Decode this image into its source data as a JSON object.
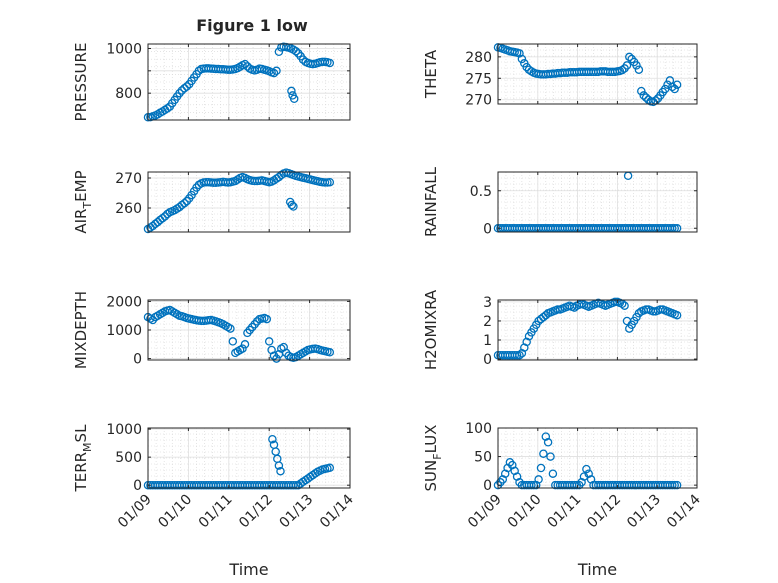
{
  "figure": {
    "title": "Figure 1 low",
    "marker_color": "#0072BD",
    "x_ticks": [
      "01/09",
      "01/10",
      "01/11",
      "01/12",
      "01/13",
      "01/14"
    ],
    "x_label": "Time"
  },
  "chart_data": [
    {
      "type": "scatter",
      "ylabel": "PRESSURE",
      "xlim": [
        0,
        5
      ],
      "ylim": [
        680,
        1020
      ],
      "yticks": [
        800,
        900,
        1000
      ],
      "ytick_labels": [
        "800",
        "",
        "1000"
      ],
      "x": [
        0.0,
        0.06,
        0.12,
        0.18,
        0.24,
        0.3,
        0.36,
        0.42,
        0.48,
        0.54,
        0.6,
        0.66,
        0.72,
        0.78,
        0.84,
        0.9,
        0.96,
        1.02,
        1.08,
        1.14,
        1.2,
        1.26,
        1.32,
        1.38,
        1.44,
        1.5,
        1.56,
        1.62,
        1.68,
        1.74,
        1.8,
        1.86,
        1.92,
        1.98,
        2.04,
        2.1,
        2.16,
        2.22,
        2.28,
        2.34,
        2.4,
        2.46,
        2.52,
        2.58,
        2.64,
        2.7,
        2.76,
        2.82,
        2.88,
        2.94,
        3.0,
        3.06,
        3.12,
        3.18,
        3.24,
        3.3,
        3.36,
        3.42,
        3.48,
        3.54,
        3.6,
        3.66,
        3.72,
        3.78,
        3.84,
        3.9,
        3.96,
        4.02,
        4.08,
        4.14,
        4.2,
        4.26,
        4.32,
        4.38,
        4.44,
        4.5,
        3.55,
        3.58,
        3.62
      ],
      "y": [
        692,
        693,
        696,
        700,
        705,
        712,
        718,
        725,
        732,
        740,
        755,
        770,
        785,
        800,
        812,
        822,
        830,
        840,
        855,
        870,
        885,
        900,
        908,
        910,
        911,
        911,
        910,
        909,
        908,
        908,
        907,
        907,
        906,
        905,
        905,
        906,
        908,
        912,
        918,
        925,
        930,
        920,
        910,
        905,
        902,
        905,
        910,
        908,
        905,
        902,
        898,
        893,
        890,
        900,
        985,
        1005,
        1008,
        1006,
        1004,
        1000,
        995,
        988,
        978,
        965,
        950,
        940,
        935,
        932,
        930,
        932,
        935,
        938,
        940,
        940,
        938,
        935,
        810,
        790,
        775
      ]
    },
    {
      "type": "scatter",
      "ylabel": "THETA",
      "xlim": [
        0,
        5
      ],
      "ylim": [
        269,
        283
      ],
      "yticks": [
        270,
        275,
        280
      ],
      "ytick_labels": [
        "270",
        "275",
        "280"
      ],
      "x": [
        0.0,
        0.06,
        0.12,
        0.18,
        0.24,
        0.3,
        0.36,
        0.42,
        0.48,
        0.54,
        0.6,
        0.66,
        0.72,
        0.78,
        0.84,
        0.9,
        0.96,
        1.02,
        1.08,
        1.14,
        1.2,
        1.26,
        1.32,
        1.38,
        1.44,
        1.5,
        1.56,
        1.62,
        1.68,
        1.74,
        1.8,
        1.86,
        1.92,
        1.98,
        2.04,
        2.1,
        2.16,
        2.22,
        2.28,
        2.34,
        2.4,
        2.46,
        2.52,
        2.58,
        2.64,
        2.7,
        2.76,
        2.82,
        2.88,
        2.94,
        3.0,
        3.06,
        3.12,
        3.18,
        3.24,
        3.3,
        3.36,
        3.42,
        3.48,
        3.54,
        3.6,
        3.66,
        3.72,
        3.78,
        3.84,
        3.9,
        3.96,
        4.02,
        4.08,
        4.14,
        4.2,
        4.26,
        4.32,
        4.38,
        4.44,
        4.5
      ],
      "y": [
        282.2,
        282.1,
        281.9,
        281.7,
        281.5,
        281.3,
        281.2,
        281.1,
        281.0,
        280.8,
        279.5,
        278.5,
        277.6,
        277.0,
        276.6,
        276.3,
        276.1,
        276.0,
        275.9,
        275.9,
        275.9,
        276.0,
        276.0,
        276.1,
        276.1,
        276.2,
        276.2,
        276.3,
        276.3,
        276.3,
        276.4,
        276.4,
        276.4,
        276.4,
        276.5,
        276.5,
        276.5,
        276.5,
        276.5,
        276.5,
        276.5,
        276.5,
        276.5,
        276.6,
        276.6,
        276.6,
        276.5,
        276.5,
        276.5,
        276.5,
        276.6,
        276.7,
        276.9,
        277.3,
        278.0,
        280.0,
        279.5,
        278.8,
        278.0,
        277.0,
        272.0,
        271.0,
        270.5,
        270.0,
        269.6,
        269.5,
        269.8,
        270.3,
        271.0,
        271.8,
        272.5,
        273.5,
        274.5,
        273.0,
        272.5,
        273.5
      ]
    },
    {
      "type": "scatter",
      "ylabel": "AIR_TEMP",
      "ylabel_main": "AIR",
      "ylabel_sub": "T",
      "ylabel_rest": "EMP",
      "xlim": [
        0,
        5
      ],
      "ylim": [
        252,
        272
      ],
      "yticks": [
        260,
        270
      ],
      "ytick_labels": [
        "260",
        "270"
      ],
      "x": [
        0.0,
        0.06,
        0.12,
        0.18,
        0.24,
        0.3,
        0.36,
        0.42,
        0.48,
        0.54,
        0.6,
        0.66,
        0.72,
        0.78,
        0.84,
        0.9,
        0.96,
        1.02,
        1.08,
        1.14,
        1.2,
        1.26,
        1.32,
        1.38,
        1.44,
        1.5,
        1.56,
        1.62,
        1.68,
        1.74,
        1.8,
        1.86,
        1.92,
        1.98,
        2.04,
        2.1,
        2.16,
        2.22,
        2.28,
        2.34,
        2.4,
        2.46,
        2.52,
        2.58,
        2.64,
        2.7,
        2.76,
        2.82,
        2.88,
        2.94,
        3.0,
        3.06,
        3.12,
        3.18,
        3.24,
        3.3,
        3.36,
        3.42,
        3.48,
        3.54,
        3.6,
        3.66,
        3.72,
        3.78,
        3.84,
        3.9,
        3.96,
        4.02,
        4.08,
        4.14,
        4.2,
        4.26,
        4.32,
        4.38,
        4.44,
        4.5,
        3.52,
        3.56,
        3.6
      ],
      "y": [
        253.0,
        253.5,
        254.0,
        254.7,
        255.3,
        256.0,
        256.6,
        257.2,
        258.0,
        258.6,
        258.9,
        259.3,
        259.8,
        260.3,
        261.0,
        261.6,
        262.3,
        263.2,
        264.3,
        265.6,
        266.8,
        267.7,
        268.2,
        268.5,
        268.6,
        268.6,
        268.5,
        268.4,
        268.4,
        268.5,
        268.6,
        268.7,
        268.6,
        268.5,
        268.6,
        268.8,
        269.0,
        269.5,
        270.0,
        270.3,
        270.0,
        269.6,
        269.3,
        269.1,
        269.0,
        269.0,
        269.1,
        269.2,
        269.0,
        268.8,
        268.6,
        268.8,
        269.2,
        269.8,
        270.3,
        271.0,
        271.5,
        271.8,
        271.6,
        271.3,
        271.0,
        270.7,
        270.5,
        270.3,
        270.1,
        269.9,
        269.7,
        269.5,
        269.3,
        269.1,
        268.9,
        268.7,
        268.6,
        268.5,
        268.5,
        268.6,
        262.0,
        261.0,
        260.5
      ]
    },
    {
      "type": "scatter",
      "ylabel": "RAINFALL",
      "xlim": [
        0,
        5
      ],
      "ylim": [
        -0.05,
        0.75
      ],
      "yticks": [
        0,
        0.5
      ],
      "ytick_labels": [
        "0",
        "0.5"
      ],
      "x": [
        0.0,
        0.06,
        0.12,
        0.18,
        0.24,
        0.3,
        0.36,
        0.42,
        0.48,
        0.54,
        0.6,
        0.66,
        0.72,
        0.78,
        0.84,
        0.9,
        0.96,
        1.02,
        1.08,
        1.14,
        1.2,
        1.26,
        1.32,
        1.38,
        1.44,
        1.5,
        1.56,
        1.62,
        1.68,
        1.74,
        1.8,
        1.86,
        1.92,
        1.98,
        2.04,
        2.1,
        2.16,
        2.22,
        2.28,
        2.34,
        2.4,
        2.46,
        2.52,
        2.58,
        2.64,
        2.7,
        2.76,
        2.82,
        2.88,
        2.94,
        3.0,
        3.06,
        3.12,
        3.18,
        3.24,
        3.3,
        3.36,
        3.42,
        3.48,
        3.54,
        3.6,
        3.66,
        3.72,
        3.78,
        3.84,
        3.9,
        3.96,
        4.02,
        4.08,
        4.14,
        4.2,
        4.26,
        4.32,
        4.38,
        4.44,
        4.5,
        3.27
      ],
      "y": [
        0,
        0,
        0,
        0,
        0,
        0,
        0,
        0,
        0,
        0,
        0,
        0,
        0,
        0,
        0,
        0,
        0,
        0,
        0,
        0,
        0,
        0,
        0,
        0,
        0,
        0,
        0,
        0,
        0,
        0,
        0,
        0,
        0,
        0,
        0,
        0,
        0,
        0,
        0,
        0,
        0,
        0,
        0,
        0,
        0,
        0,
        0,
        0,
        0,
        0,
        0,
        0,
        0,
        0,
        0,
        0,
        0,
        0,
        0,
        0,
        0,
        0,
        0,
        0,
        0,
        0,
        0,
        0,
        0,
        0,
        0,
        0,
        0,
        0,
        0,
        0,
        0.7
      ]
    },
    {
      "type": "scatter",
      "ylabel": "MIXDEPTH",
      "xlim": [
        0,
        5
      ],
      "ylim": [
        -50,
        2050
      ],
      "yticks": [
        0,
        1000,
        2000
      ],
      "ytick_labels": [
        "0",
        "1000",
        "2000"
      ],
      "x": [
        0.0,
        0.06,
        0.12,
        0.18,
        0.24,
        0.3,
        0.36,
        0.42,
        0.48,
        0.54,
        0.6,
        0.66,
        0.72,
        0.78,
        0.84,
        0.9,
        0.96,
        1.02,
        1.08,
        1.14,
        1.2,
        1.26,
        1.32,
        1.38,
        1.44,
        1.5,
        1.56,
        1.62,
        1.68,
        1.74,
        1.8,
        1.86,
        1.92,
        1.98,
        2.04,
        2.1,
        2.16,
        2.22,
        2.28,
        2.34,
        2.4,
        2.46,
        2.52,
        2.58,
        2.64,
        2.7,
        2.76,
        2.82,
        2.88,
        2.94,
        3.0,
        3.06,
        3.12,
        3.18,
        3.24,
        3.3,
        3.36,
        3.42,
        3.48,
        3.54,
        3.6,
        3.66,
        3.72,
        3.78,
        3.84,
        3.9,
        3.96,
        4.02,
        4.08,
        4.14,
        4.2,
        4.26,
        4.32,
        4.38,
        4.44,
        4.5
      ],
      "y": [
        1450,
        1400,
        1350,
        1450,
        1500,
        1550,
        1600,
        1650,
        1680,
        1700,
        1650,
        1600,
        1550,
        1500,
        1480,
        1450,
        1420,
        1400,
        1380,
        1360,
        1340,
        1330,
        1320,
        1320,
        1330,
        1340,
        1350,
        1330,
        1300,
        1270,
        1240,
        1200,
        1150,
        1100,
        1050,
        600,
        200,
        250,
        300,
        350,
        500,
        900,
        1000,
        1100,
        1200,
        1300,
        1380,
        1400,
        1420,
        1380,
        600,
        300,
        100,
        0,
        150,
        350,
        400,
        200,
        100,
        50,
        30,
        50,
        100,
        150,
        200,
        250,
        300,
        320,
        340,
        350,
        330,
        300,
        280,
        260,
        240,
        220
      ]
    },
    {
      "type": "scatter",
      "ylabel": "H2OMIXRA",
      "xlim": [
        0,
        5
      ],
      "ylim": [
        -0.05,
        3.1
      ],
      "yticks": [
        0,
        1,
        2,
        3
      ],
      "ytick_labels": [
        "0",
        "1",
        "2",
        "3"
      ],
      "x": [
        0.0,
        0.06,
        0.12,
        0.18,
        0.24,
        0.3,
        0.36,
        0.42,
        0.48,
        0.54,
        0.6,
        0.66,
        0.72,
        0.78,
        0.84,
        0.9,
        0.96,
        1.02,
        1.08,
        1.14,
        1.2,
        1.26,
        1.32,
        1.38,
        1.44,
        1.5,
        1.56,
        1.62,
        1.68,
        1.74,
        1.8,
        1.86,
        1.92,
        1.98,
        2.04,
        2.1,
        2.16,
        2.22,
        2.28,
        2.34,
        2.4,
        2.46,
        2.52,
        2.58,
        2.64,
        2.7,
        2.76,
        2.82,
        2.88,
        2.94,
        3.0,
        3.06,
        3.12,
        3.18,
        3.24,
        3.3,
        3.36,
        3.42,
        3.48,
        3.54,
        3.6,
        3.66,
        3.72,
        3.78,
        3.84,
        3.9,
        3.96,
        4.02,
        4.08,
        4.14,
        4.2,
        4.26,
        4.32,
        4.38,
        4.44,
        4.5
      ],
      "y": [
        0.2,
        0.2,
        0.2,
        0.2,
        0.2,
        0.2,
        0.2,
        0.2,
        0.2,
        0.2,
        0.3,
        0.6,
        0.9,
        1.2,
        1.4,
        1.6,
        1.8,
        2.0,
        2.1,
        2.2,
        2.3,
        2.4,
        2.45,
        2.5,
        2.55,
        2.6,
        2.6,
        2.65,
        2.7,
        2.75,
        2.8,
        2.75,
        2.7,
        2.8,
        2.85,
        2.9,
        2.85,
        2.8,
        2.75,
        2.8,
        2.85,
        2.9,
        2.95,
        2.9,
        2.85,
        2.8,
        2.85,
        2.9,
        2.95,
        3.0,
        3.0,
        2.95,
        2.9,
        2.8,
        2.0,
        1.6,
        1.8,
        2.0,
        2.2,
        2.4,
        2.5,
        2.55,
        2.6,
        2.6,
        2.55,
        2.5,
        2.5,
        2.55,
        2.6,
        2.6,
        2.55,
        2.5,
        2.45,
        2.4,
        2.35,
        2.3
      ]
    },
    {
      "type": "scatter",
      "ylabel": "TERR_MSL",
      "ylabel_main": "TERR",
      "ylabel_sub": "M",
      "ylabel_rest": "SL",
      "xlim": [
        0,
        5
      ],
      "ylim": [
        -50,
        1020
      ],
      "yticks": [
        0,
        500,
        1000
      ],
      "ytick_labels": [
        "0",
        "500",
        "1000"
      ],
      "x": [
        0.0,
        0.06,
        0.12,
        0.18,
        0.24,
        0.3,
        0.36,
        0.42,
        0.48,
        0.54,
        0.6,
        0.66,
        0.72,
        0.78,
        0.84,
        0.9,
        0.96,
        1.02,
        1.08,
        1.14,
        1.2,
        1.26,
        1.32,
        1.38,
        1.44,
        1.5,
        1.56,
        1.62,
        1.68,
        1.74,
        1.8,
        1.86,
        1.92,
        1.98,
        2.04,
        2.1,
        2.16,
        2.22,
        2.28,
        2.34,
        2.4,
        2.46,
        2.52,
        2.58,
        2.64,
        2.7,
        2.76,
        2.82,
        2.88,
        2.94,
        3.0,
        3.06,
        3.12,
        3.18,
        3.24,
        3.3,
        3.36,
        3.42,
        3.48,
        3.54,
        3.6,
        3.66,
        3.72,
        3.78,
        3.84,
        3.9,
        3.96,
        4.02,
        4.08,
        4.14,
        4.2,
        4.26,
        4.32,
        4.38,
        4.44,
        4.5,
        3.08,
        3.12,
        3.16,
        3.2,
        3.24,
        3.28
      ],
      "y": [
        0,
        0,
        0,
        0,
        0,
        0,
        0,
        0,
        0,
        0,
        0,
        0,
        0,
        0,
        0,
        0,
        0,
        0,
        0,
        0,
        0,
        0,
        0,
        0,
        0,
        0,
        0,
        0,
        0,
        0,
        0,
        0,
        0,
        0,
        0,
        0,
        0,
        0,
        0,
        0,
        0,
        0,
        0,
        0,
        0,
        0,
        0,
        0,
        0,
        0,
        0,
        0,
        0,
        0,
        0,
        0,
        0,
        0,
        0,
        0,
        0,
        0,
        0,
        30,
        60,
        90,
        120,
        150,
        180,
        210,
        240,
        260,
        280,
        290,
        300,
        310,
        820,
        720,
        600,
        470,
        350,
        250
      ]
    },
    {
      "type": "scatter",
      "ylabel": "SUN_FLUX",
      "ylabel_main": "SUN",
      "ylabel_sub": "F",
      "ylabel_rest": "LUX",
      "xlim": [
        0,
        5
      ],
      "ylim": [
        -5,
        100
      ],
      "yticks": [
        0,
        50,
        100
      ],
      "ytick_labels": [
        "0",
        "50",
        "100"
      ],
      "x": [
        0.0,
        0.06,
        0.12,
        0.18,
        0.24,
        0.3,
        0.36,
        0.42,
        0.48,
        0.54,
        0.6,
        0.66,
        0.72,
        0.78,
        0.84,
        0.9,
        0.96,
        1.02,
        1.08,
        1.14,
        1.2,
        1.26,
        1.32,
        1.38,
        1.44,
        1.5,
        1.56,
        1.62,
        1.68,
        1.74,
        1.8,
        1.86,
        1.92,
        1.98,
        2.04,
        2.1,
        2.16,
        2.22,
        2.28,
        2.34,
        2.4,
        2.46,
        2.52,
        2.58,
        2.64,
        2.7,
        2.76,
        2.82,
        2.88,
        2.94,
        3.0,
        3.06,
        3.12,
        3.18,
        3.24,
        3.3,
        3.36,
        3.42,
        3.48,
        3.54,
        3.6,
        3.66,
        3.72,
        3.78,
        3.84,
        3.9,
        3.96,
        4.02,
        4.08,
        4.14,
        4.2,
        4.26,
        4.32,
        4.38,
        4.44,
        4.5
      ],
      "y": [
        0,
        5,
        10,
        20,
        30,
        40,
        35,
        25,
        15,
        5,
        0,
        0,
        0,
        0,
        0,
        0,
        0,
        10,
        30,
        55,
        85,
        75,
        50,
        20,
        0,
        0,
        0,
        0,
        0,
        0,
        0,
        0,
        0,
        0,
        0,
        5,
        15,
        28,
        20,
        10,
        0,
        0,
        0,
        0,
        0,
        0,
        0,
        0,
        0,
        0,
        0,
        0,
        0,
        0,
        0,
        0,
        0,
        0,
        0,
        0,
        0,
        0,
        0,
        0,
        0,
        0,
        0,
        0,
        0,
        0,
        0,
        0,
        0,
        0,
        0,
        0
      ]
    }
  ]
}
